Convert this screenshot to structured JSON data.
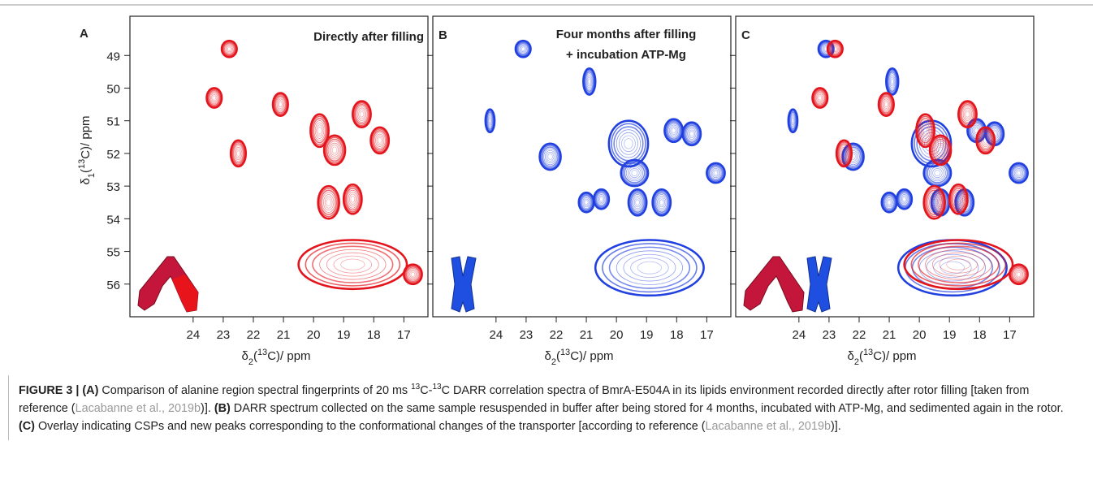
{
  "figure": {
    "y_label": [
      {
        "text": "δ"
      },
      {
        "text": "1",
        "style": "sub"
      },
      {
        "text": "("
      },
      {
        "text": "13",
        "style": "sup"
      },
      {
        "text": "C)/ ppm"
      }
    ],
    "ylim": [
      47.8,
      57.0
    ],
    "yticks": [
      49,
      50,
      51,
      52,
      53,
      54,
      55,
      56
    ],
    "panels": [
      {
        "label": "A",
        "title": [
          "Directly after filling"
        ],
        "title_color": "#e3141c",
        "x_label": [
          {
            "text": "δ"
          },
          {
            "text": "2",
            "style": "sub"
          },
          {
            "text": "("
          },
          {
            "text": "13",
            "style": "sup"
          },
          {
            "text": "C)/ ppm"
          }
        ],
        "xlim": [
          26.1,
          16.2
        ],
        "xticks": [
          24,
          23,
          22,
          21,
          20,
          19,
          18,
          17
        ],
        "series": [
          {
            "color": "#e3141c",
            "peaks": [
              {
                "x": 22.8,
                "y": 48.8,
                "w": 0.5,
                "h": 0.5
              },
              {
                "x": 23.3,
                "y": 50.3,
                "w": 0.5,
                "h": 0.6
              },
              {
                "x": 21.1,
                "y": 50.5,
                "w": 0.5,
                "h": 0.7
              },
              {
                "x": 22.5,
                "y": 52.0,
                "w": 0.5,
                "h": 0.8
              },
              {
                "x": 19.8,
                "y": 51.3,
                "w": 0.6,
                "h": 1.0
              },
              {
                "x": 19.3,
                "y": 51.9,
                "w": 0.7,
                "h": 0.9
              },
              {
                "x": 18.4,
                "y": 50.8,
                "w": 0.6,
                "h": 0.8
              },
              {
                "x": 17.8,
                "y": 51.6,
                "w": 0.6,
                "h": 0.8
              },
              {
                "x": 19.5,
                "y": 53.5,
                "w": 0.7,
                "h": 1.0
              },
              {
                "x": 18.7,
                "y": 53.4,
                "w": 0.6,
                "h": 0.9
              },
              {
                "x": 18.7,
                "y": 55.4,
                "w": 3.6,
                "h": 1.5
              },
              {
                "x": 16.7,
                "y": 55.7,
                "w": 0.6,
                "h": 0.6
              }
            ]
          }
        ]
      },
      {
        "label": "B",
        "title": [
          "Four months after filling",
          "+ incubation ATP-Mg"
        ],
        "title_color": "#2b2b93",
        "x_label": [
          {
            "text": "δ"
          },
          {
            "text": "2",
            "style": "sub"
          },
          {
            "text": "("
          },
          {
            "text": "13",
            "style": "sup"
          },
          {
            "text": "C)/ ppm"
          }
        ],
        "xlim": [
          26.1,
          16.2
        ],
        "xticks": [
          24,
          23,
          22,
          21,
          20,
          19,
          18,
          17
        ],
        "series": [
          {
            "color": "#2040e0",
            "peaks": [
              {
                "x": 23.1,
                "y": 48.8,
                "w": 0.5,
                "h": 0.5
              },
              {
                "x": 24.2,
                "y": 51.0,
                "w": 0.3,
                "h": 0.7
              },
              {
                "x": 22.2,
                "y": 52.1,
                "w": 0.7,
                "h": 0.8
              },
              {
                "x": 20.9,
                "y": 49.8,
                "w": 0.4,
                "h": 0.8
              },
              {
                "x": 21.0,
                "y": 53.5,
                "w": 0.5,
                "h": 0.6
              },
              {
                "x": 20.5,
                "y": 53.4,
                "w": 0.5,
                "h": 0.6
              },
              {
                "x": 19.6,
                "y": 51.7,
                "w": 1.3,
                "h": 1.4
              },
              {
                "x": 19.4,
                "y": 52.6,
                "w": 0.9,
                "h": 0.8
              },
              {
                "x": 19.3,
                "y": 53.5,
                "w": 0.6,
                "h": 0.8
              },
              {
                "x": 18.5,
                "y": 53.5,
                "w": 0.6,
                "h": 0.8
              },
              {
                "x": 18.1,
                "y": 51.3,
                "w": 0.6,
                "h": 0.7
              },
              {
                "x": 17.5,
                "y": 51.4,
                "w": 0.6,
                "h": 0.7
              },
              {
                "x": 16.7,
                "y": 52.6,
                "w": 0.6,
                "h": 0.6
              },
              {
                "x": 18.9,
                "y": 55.5,
                "w": 3.6,
                "h": 1.7
              }
            ]
          }
        ]
      },
      {
        "label": "C",
        "x_label": [
          {
            "text": "δ"
          },
          {
            "text": "2",
            "style": "sub"
          },
          {
            "text": "("
          },
          {
            "text": "13",
            "style": "sup"
          },
          {
            "text": "C)/ ppm"
          }
        ],
        "xlim": [
          26.1,
          16.2
        ],
        "xticks": [
          24,
          23,
          22,
          21,
          20,
          19,
          18,
          17
        ],
        "series": [
          {
            "color": "#2040e0",
            "peaks": [
              {
                "x": 23.1,
                "y": 48.8,
                "w": 0.5,
                "h": 0.5
              },
              {
                "x": 24.2,
                "y": 51.0,
                "w": 0.3,
                "h": 0.7
              },
              {
                "x": 22.2,
                "y": 52.1,
                "w": 0.7,
                "h": 0.8
              },
              {
                "x": 20.9,
                "y": 49.8,
                "w": 0.4,
                "h": 0.8
              },
              {
                "x": 21.0,
                "y": 53.5,
                "w": 0.5,
                "h": 0.6
              },
              {
                "x": 20.5,
                "y": 53.4,
                "w": 0.5,
                "h": 0.6
              },
              {
                "x": 19.6,
                "y": 51.7,
                "w": 1.3,
                "h": 1.4
              },
              {
                "x": 19.4,
                "y": 52.6,
                "w": 0.9,
                "h": 0.8
              },
              {
                "x": 19.3,
                "y": 53.5,
                "w": 0.6,
                "h": 0.8
              },
              {
                "x": 18.5,
                "y": 53.5,
                "w": 0.6,
                "h": 0.8
              },
              {
                "x": 18.1,
                "y": 51.3,
                "w": 0.6,
                "h": 0.7
              },
              {
                "x": 17.5,
                "y": 51.4,
                "w": 0.6,
                "h": 0.7
              },
              {
                "x": 16.7,
                "y": 52.6,
                "w": 0.6,
                "h": 0.6
              },
              {
                "x": 18.9,
                "y": 55.5,
                "w": 3.6,
                "h": 1.7
              }
            ]
          },
          {
            "color": "#e3141c",
            "peaks": [
              {
                "x": 22.8,
                "y": 48.8,
                "w": 0.5,
                "h": 0.5
              },
              {
                "x": 23.3,
                "y": 50.3,
                "w": 0.5,
                "h": 0.6
              },
              {
                "x": 21.1,
                "y": 50.5,
                "w": 0.5,
                "h": 0.7
              },
              {
                "x": 22.5,
                "y": 52.0,
                "w": 0.5,
                "h": 0.8
              },
              {
                "x": 19.8,
                "y": 51.3,
                "w": 0.6,
                "h": 1.0
              },
              {
                "x": 19.3,
                "y": 51.9,
                "w": 0.7,
                "h": 0.9
              },
              {
                "x": 18.4,
                "y": 50.8,
                "w": 0.6,
                "h": 0.8
              },
              {
                "x": 17.8,
                "y": 51.6,
                "w": 0.6,
                "h": 0.8
              },
              {
                "x": 19.5,
                "y": 53.5,
                "w": 0.7,
                "h": 1.0
              },
              {
                "x": 18.7,
                "y": 53.4,
                "w": 0.6,
                "h": 0.9
              },
              {
                "x": 18.7,
                "y": 55.4,
                "w": 3.6,
                "h": 1.5
              },
              {
                "x": 16.7,
                "y": 55.7,
                "w": 0.6,
                "h": 0.6
              }
            ]
          }
        ]
      }
    ]
  },
  "caption": [
    {
      "text": "FIGURE 3 | (A)",
      "style": "bold"
    },
    {
      "text": " Comparison of alanine region spectral fingerprints of 20 ms "
    },
    {
      "text": "13",
      "style": "sup"
    },
    {
      "text": "C-"
    },
    {
      "text": "13",
      "style": "sup"
    },
    {
      "text": "C DARR correlation spectra of BmrA-E504A in its lipids environment recorded directly after rotor filling [taken from reference ("
    },
    {
      "text": "Lacabanne et al., 2019b",
      "style": "link"
    },
    {
      "text": ")]. "
    },
    {
      "text": "(B)",
      "style": "bold"
    },
    {
      "text": " DARR spectrum collected on the same sample resuspended in buffer after being stored for 4 months, incubated with ATP-Mg, and sedimented again in the rotor. "
    },
    {
      "text": "(C)",
      "style": "bold"
    },
    {
      "text": " Overlay indicating CSPs and new peaks corresponding to the conformational changes of the transporter [according to reference ("
    },
    {
      "text": "Lacabanne et al., 2019b",
      "style": "link"
    },
    {
      "text": ")]."
    }
  ]
}
